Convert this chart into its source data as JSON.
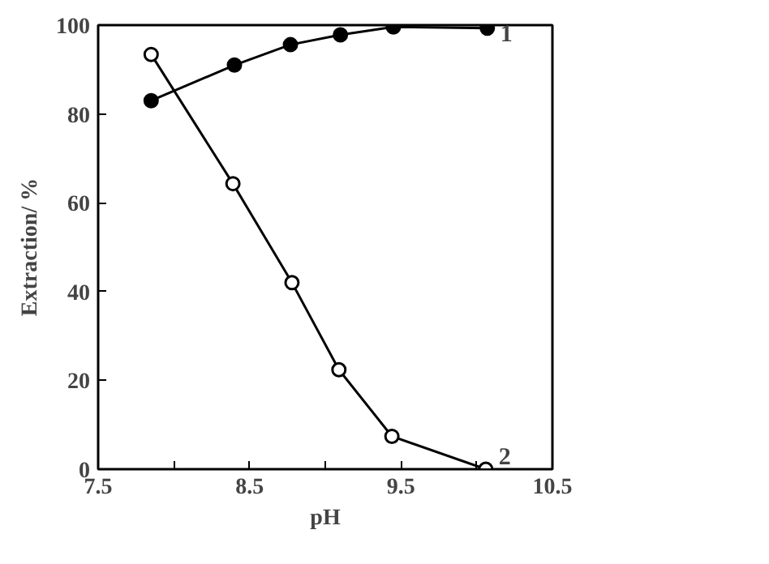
{
  "chart_data": {
    "type": "line",
    "xlabel": "pH",
    "ylabel": "Extraction/ %",
    "xlim": [
      7.5,
      10.5
    ],
    "ylim": [
      0,
      100
    ],
    "xticks": [
      7.5,
      {
        "value": 8.0,
        "label": null
      },
      8.5,
      {
        "value": 9.0,
        "label": null
      },
      9.5,
      {
        "value": 10.0,
        "label": null
      },
      10.5
    ],
    "yticks": [
      0,
      20,
      40,
      60,
      80,
      100
    ],
    "grid": false,
    "series": [
      {
        "name": "1",
        "color": "#000000",
        "marker": "circle",
        "x": [
          7.85,
          8.4,
          8.77,
          9.1,
          9.45,
          10.07
        ],
        "values": [
          83,
          91,
          95.6,
          97.8,
          99.6,
          99.3
        ]
      },
      {
        "name": "2",
        "color": "#000000",
        "marker": "circle",
        "x": [
          7.85,
          8.39,
          8.78,
          9.09,
          9.44,
          10.06
        ],
        "values": [
          93.4,
          64.3,
          42,
          22.4,
          7.4,
          0
        ]
      }
    ]
  }
}
